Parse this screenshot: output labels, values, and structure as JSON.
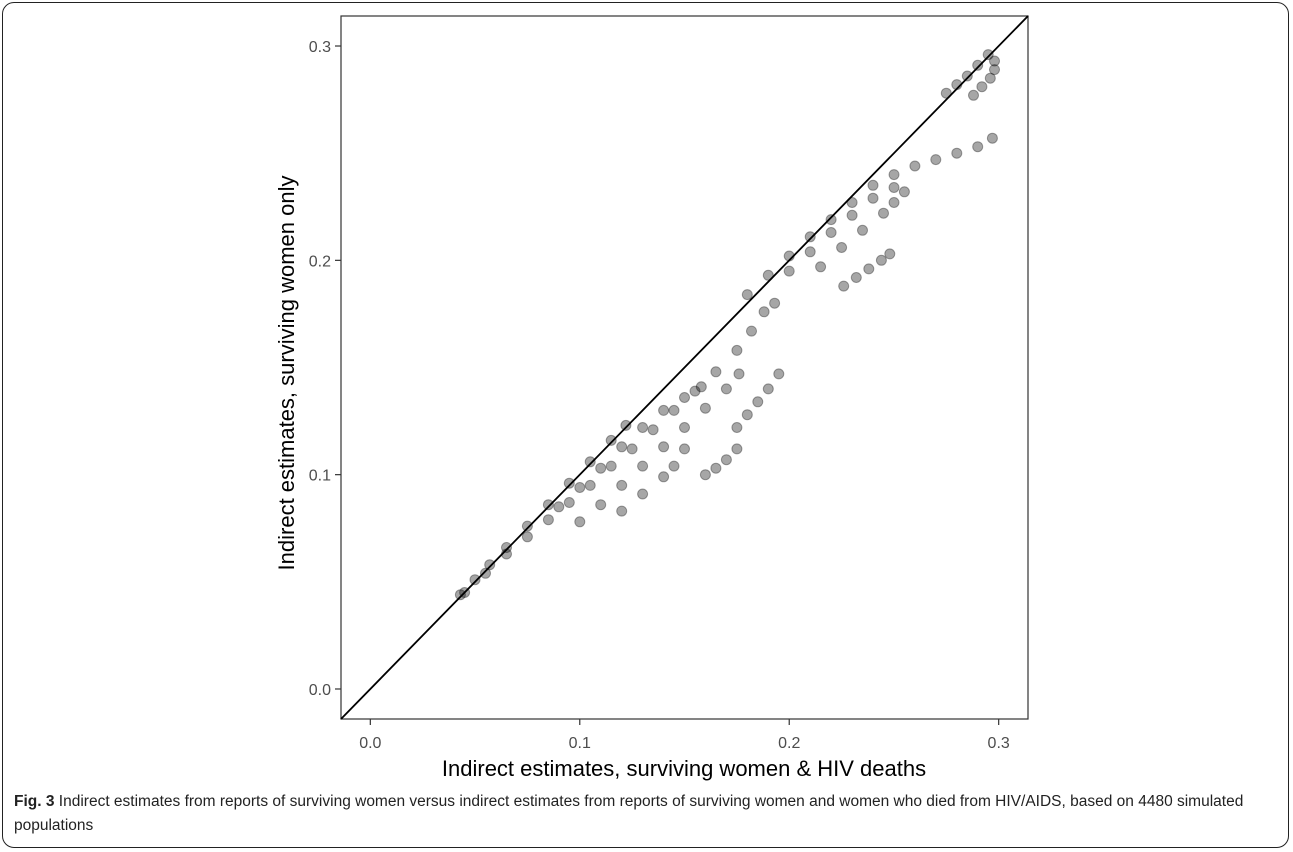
{
  "caption": {
    "label": "Fig. 3",
    "text": "Indirect estimates from reports of surviving women versus indirect estimates from reports of surviving women and women who died from HIV/AIDS, based on 4480 simulated populations"
  },
  "chart_data": {
    "type": "scatter",
    "title": "",
    "xlabel": "Indirect estimates, surviving women & HIV deaths",
    "ylabel": "Indirect estimates, surviving women only",
    "xlim": [
      -0.014,
      0.314
    ],
    "ylim": [
      -0.014,
      0.314
    ],
    "x_ticks": [
      0.0,
      0.1,
      0.2,
      0.3
    ],
    "y_ticks": [
      0.0,
      0.1,
      0.2,
      0.3
    ],
    "x_tick_labels": [
      "0.0",
      "0.1",
      "0.2",
      "0.3"
    ],
    "y_tick_labels": [
      "0.0",
      "0.1",
      "0.2",
      "0.3"
    ],
    "grid": false,
    "reference_line": "y = x",
    "point_color": "#000000",
    "point_opacity": 0.35,
    "series": [
      {
        "points": [
          [
            0.043,
            0.044
          ],
          [
            0.05,
            0.051
          ],
          [
            0.057,
            0.058
          ],
          [
            0.065,
            0.066
          ],
          [
            0.075,
            0.076
          ],
          [
            0.085,
            0.086
          ],
          [
            0.095,
            0.096
          ],
          [
            0.105,
            0.106
          ],
          [
            0.115,
            0.116
          ],
          [
            0.122,
            0.123
          ],
          [
            0.045,
            0.045
          ],
          [
            0.055,
            0.054
          ],
          [
            0.065,
            0.063
          ],
          [
            0.075,
            0.071
          ],
          [
            0.085,
            0.079
          ],
          [
            0.095,
            0.087
          ],
          [
            0.105,
            0.095
          ],
          [
            0.115,
            0.104
          ],
          [
            0.125,
            0.112
          ],
          [
            0.135,
            0.121
          ],
          [
            0.145,
            0.13
          ],
          [
            0.155,
            0.139
          ],
          [
            0.165,
            0.148
          ],
          [
            0.175,
            0.158
          ],
          [
            0.182,
            0.167
          ],
          [
            0.188,
            0.176
          ],
          [
            0.193,
            0.18
          ],
          [
            0.09,
            0.085
          ],
          [
            0.1,
            0.094
          ],
          [
            0.11,
            0.103
          ],
          [
            0.12,
            0.113
          ],
          [
            0.13,
            0.122
          ],
          [
            0.14,
            0.13
          ],
          [
            0.15,
            0.136
          ],
          [
            0.158,
            0.141
          ],
          [
            0.1,
            0.078
          ],
          [
            0.11,
            0.086
          ],
          [
            0.12,
            0.095
          ],
          [
            0.13,
            0.104
          ],
          [
            0.14,
            0.113
          ],
          [
            0.15,
            0.122
          ],
          [
            0.16,
            0.131
          ],
          [
            0.17,
            0.14
          ],
          [
            0.176,
            0.147
          ],
          [
            0.12,
            0.083
          ],
          [
            0.13,
            0.091
          ],
          [
            0.14,
            0.099
          ],
          [
            0.145,
            0.104
          ],
          [
            0.15,
            0.112
          ],
          [
            0.16,
            0.1
          ],
          [
            0.165,
            0.103
          ],
          [
            0.17,
            0.107
          ],
          [
            0.175,
            0.112
          ],
          [
            0.175,
            0.122
          ],
          [
            0.18,
            0.128
          ],
          [
            0.185,
            0.134
          ],
          [
            0.19,
            0.14
          ],
          [
            0.195,
            0.147
          ],
          [
            0.18,
            0.184
          ],
          [
            0.19,
            0.193
          ],
          [
            0.2,
            0.202
          ],
          [
            0.21,
            0.211
          ],
          [
            0.22,
            0.219
          ],
          [
            0.23,
            0.227
          ],
          [
            0.24,
            0.235
          ],
          [
            0.25,
            0.24
          ],
          [
            0.26,
            0.244
          ],
          [
            0.27,
            0.247
          ],
          [
            0.28,
            0.25
          ],
          [
            0.29,
            0.253
          ],
          [
            0.297,
            0.257
          ],
          [
            0.2,
            0.195
          ],
          [
            0.21,
            0.204
          ],
          [
            0.22,
            0.213
          ],
          [
            0.23,
            0.221
          ],
          [
            0.24,
            0.229
          ],
          [
            0.25,
            0.234
          ],
          [
            0.255,
            0.232
          ],
          [
            0.215,
            0.197
          ],
          [
            0.225,
            0.206
          ],
          [
            0.235,
            0.214
          ],
          [
            0.245,
            0.222
          ],
          [
            0.25,
            0.227
          ],
          [
            0.226,
            0.188
          ],
          [
            0.232,
            0.192
          ],
          [
            0.238,
            0.196
          ],
          [
            0.244,
            0.2
          ],
          [
            0.248,
            0.203
          ],
          [
            0.275,
            0.278
          ],
          [
            0.28,
            0.282
          ],
          [
            0.285,
            0.286
          ],
          [
            0.29,
            0.291
          ],
          [
            0.295,
            0.296
          ],
          [
            0.288,
            0.277
          ],
          [
            0.292,
            0.281
          ],
          [
            0.296,
            0.285
          ],
          [
            0.298,
            0.289
          ],
          [
            0.298,
            0.293
          ]
        ]
      }
    ]
  }
}
